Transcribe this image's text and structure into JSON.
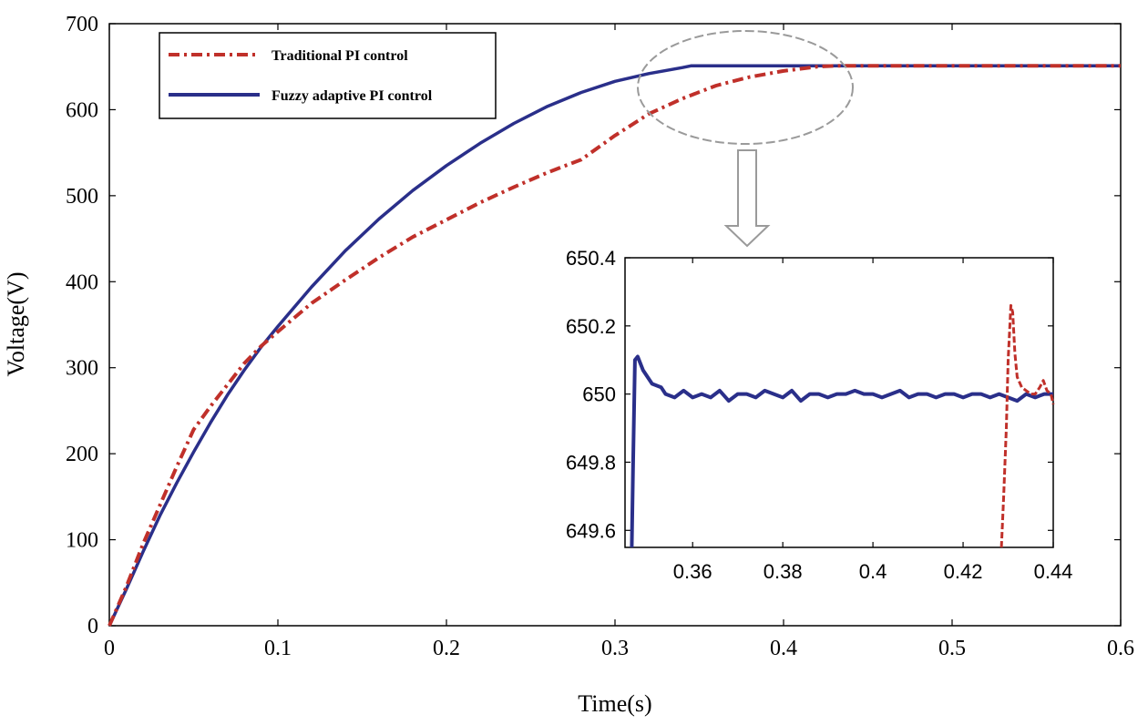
{
  "chart_data": [
    {
      "type": "line",
      "panel": "main",
      "title": "",
      "xlabel": "Time(s)",
      "ylabel": "Voltage(V)",
      "xlim": [
        0,
        0.6
      ],
      "ylim": [
        0,
        700
      ],
      "x_ticks": [
        0,
        0.1,
        0.2,
        0.3,
        0.4,
        0.5,
        0.6
      ],
      "x_tick_labels": [
        "0",
        "0.1",
        "0.2",
        "0.3",
        "0.4",
        "0.5",
        "0.6"
      ],
      "y_ticks": [
        0,
        100,
        200,
        300,
        400,
        500,
        600,
        700
      ],
      "y_tick_labels": [
        "0",
        "100",
        "200",
        "300",
        "400",
        "500",
        "600",
        "700"
      ],
      "legend": {
        "placement": "top-left"
      },
      "series": [
        {
          "name": "Traditional PI control",
          "color": "#c0302a",
          "style": "dash-dot",
          "points": [
            [
              0,
              0
            ],
            [
              0.01,
              45
            ],
            [
              0.02,
              95
            ],
            [
              0.03,
              140
            ],
            [
              0.04,
              185
            ],
            [
              0.05,
              228
            ],
            [
              0.06,
              255
            ],
            [
              0.07,
              280
            ],
            [
              0.08,
              305
            ],
            [
              0.09,
              325
            ],
            [
              0.1,
              342
            ],
            [
              0.12,
              375
            ],
            [
              0.14,
              402
            ],
            [
              0.16,
              428
            ],
            [
              0.18,
              452
            ],
            [
              0.2,
              472
            ],
            [
              0.22,
              492
            ],
            [
              0.24,
              510
            ],
            [
              0.26,
              527
            ],
            [
              0.28,
              542
            ],
            [
              0.3,
              570
            ],
            [
              0.32,
              595
            ],
            [
              0.34,
              613
            ],
            [
              0.36,
              628
            ],
            [
              0.38,
              638
            ],
            [
              0.4,
              645
            ],
            [
              0.42,
              650
            ],
            [
              0.43,
              651
            ],
            [
              0.6,
              651
            ]
          ]
        },
        {
          "name": "Fuzzy adaptive PI control",
          "color": "#2a2f8a",
          "style": "solid",
          "points": [
            [
              0,
              0
            ],
            [
              0.01,
              42
            ],
            [
              0.02,
              86
            ],
            [
              0.03,
              128
            ],
            [
              0.04,
              166
            ],
            [
              0.05,
              202
            ],
            [
              0.06,
              236
            ],
            [
              0.07,
              268
            ],
            [
              0.08,
              297
            ],
            [
              0.09,
              324
            ],
            [
              0.1,
              348
            ],
            [
              0.12,
              394
            ],
            [
              0.14,
              436
            ],
            [
              0.16,
              473
            ],
            [
              0.18,
              506
            ],
            [
              0.2,
              535
            ],
            [
              0.22,
              561
            ],
            [
              0.24,
              584
            ],
            [
              0.26,
              604
            ],
            [
              0.28,
              620
            ],
            [
              0.3,
              633
            ],
            [
              0.32,
              642
            ],
            [
              0.34,
              649
            ],
            [
              0.345,
              651
            ],
            [
              0.6,
              651
            ]
          ]
        }
      ],
      "annotation": "ellipse marks the region near 0.32–0.44 s, arrow points to the zoomed inset"
    },
    {
      "type": "line",
      "panel": "inset",
      "title": "",
      "xlim": [
        0.345,
        0.44
      ],
      "ylim": [
        649.55,
        650.4
      ],
      "x_ticks": [
        0.36,
        0.38,
        0.4,
        0.42,
        0.44
      ],
      "x_tick_labels": [
        "0.36",
        "0.38",
        "0.4",
        "0.42",
        "0.44"
      ],
      "y_ticks": [
        649.6,
        649.8,
        650,
        650.2,
        650.4
      ],
      "y_tick_labels": [
        "649.6",
        "649.8",
        "650",
        "650.2",
        "650.4"
      ],
      "series": [
        {
          "name": "Fuzzy adaptive PI control",
          "color": "#2a2f8a",
          "points": [
            [
              0.3465,
              649.55
            ],
            [
              0.3468,
              649.8
            ],
            [
              0.3472,
              650.1
            ],
            [
              0.3478,
              650.11
            ],
            [
              0.349,
              650.07
            ],
            [
              0.351,
              650.03
            ],
            [
              0.353,
              650.02
            ],
            [
              0.354,
              650.0
            ],
            [
              0.356,
              649.99
            ],
            [
              0.358,
              650.01
            ],
            [
              0.36,
              649.99
            ],
            [
              0.362,
              650.0
            ],
            [
              0.364,
              649.99
            ],
            [
              0.366,
              650.01
            ],
            [
              0.368,
              649.98
            ],
            [
              0.37,
              650.0
            ],
            [
              0.372,
              650.0
            ],
            [
              0.374,
              649.99
            ],
            [
              0.376,
              650.01
            ],
            [
              0.378,
              650.0
            ],
            [
              0.38,
              649.99
            ],
            [
              0.382,
              650.01
            ],
            [
              0.384,
              649.98
            ],
            [
              0.386,
              650.0
            ],
            [
              0.388,
              650.0
            ],
            [
              0.39,
              649.99
            ],
            [
              0.392,
              650.0
            ],
            [
              0.394,
              650.0
            ],
            [
              0.396,
              650.01
            ],
            [
              0.398,
              650.0
            ],
            [
              0.4,
              650.0
            ],
            [
              0.402,
              649.99
            ],
            [
              0.404,
              650.0
            ],
            [
              0.406,
              650.01
            ],
            [
              0.408,
              649.99
            ],
            [
              0.41,
              650.0
            ],
            [
              0.412,
              650.0
            ],
            [
              0.414,
              649.99
            ],
            [
              0.416,
              650.0
            ],
            [
              0.418,
              650.0
            ],
            [
              0.42,
              649.99
            ],
            [
              0.422,
              650.0
            ],
            [
              0.424,
              650.0
            ],
            [
              0.426,
              649.99
            ],
            [
              0.428,
              650.0
            ],
            [
              0.43,
              649.99
            ],
            [
              0.432,
              649.98
            ],
            [
              0.434,
              650.0
            ],
            [
              0.436,
              649.99
            ],
            [
              0.438,
              650.0
            ],
            [
              0.44,
              650.0
            ]
          ]
        },
        {
          "name": "Traditional PI control",
          "color": "#c0302a",
          "points": [
            [
              0.4285,
              649.55
            ],
            [
              0.429,
              649.7
            ],
            [
              0.4296,
              649.9
            ],
            [
              0.43,
              650.1
            ],
            [
              0.4306,
              650.26
            ],
            [
              0.431,
              650.24
            ],
            [
              0.4315,
              650.12
            ],
            [
              0.432,
              650.05
            ],
            [
              0.433,
              650.02
            ],
            [
              0.434,
              650.01
            ],
            [
              0.435,
              650.0
            ],
            [
              0.436,
              650.0
            ],
            [
              0.437,
              650.02
            ],
            [
              0.4378,
              650.04
            ],
            [
              0.4386,
              650.01
            ],
            [
              0.4395,
              650.0
            ],
            [
              0.44,
              649.97
            ]
          ]
        }
      ]
    }
  ]
}
